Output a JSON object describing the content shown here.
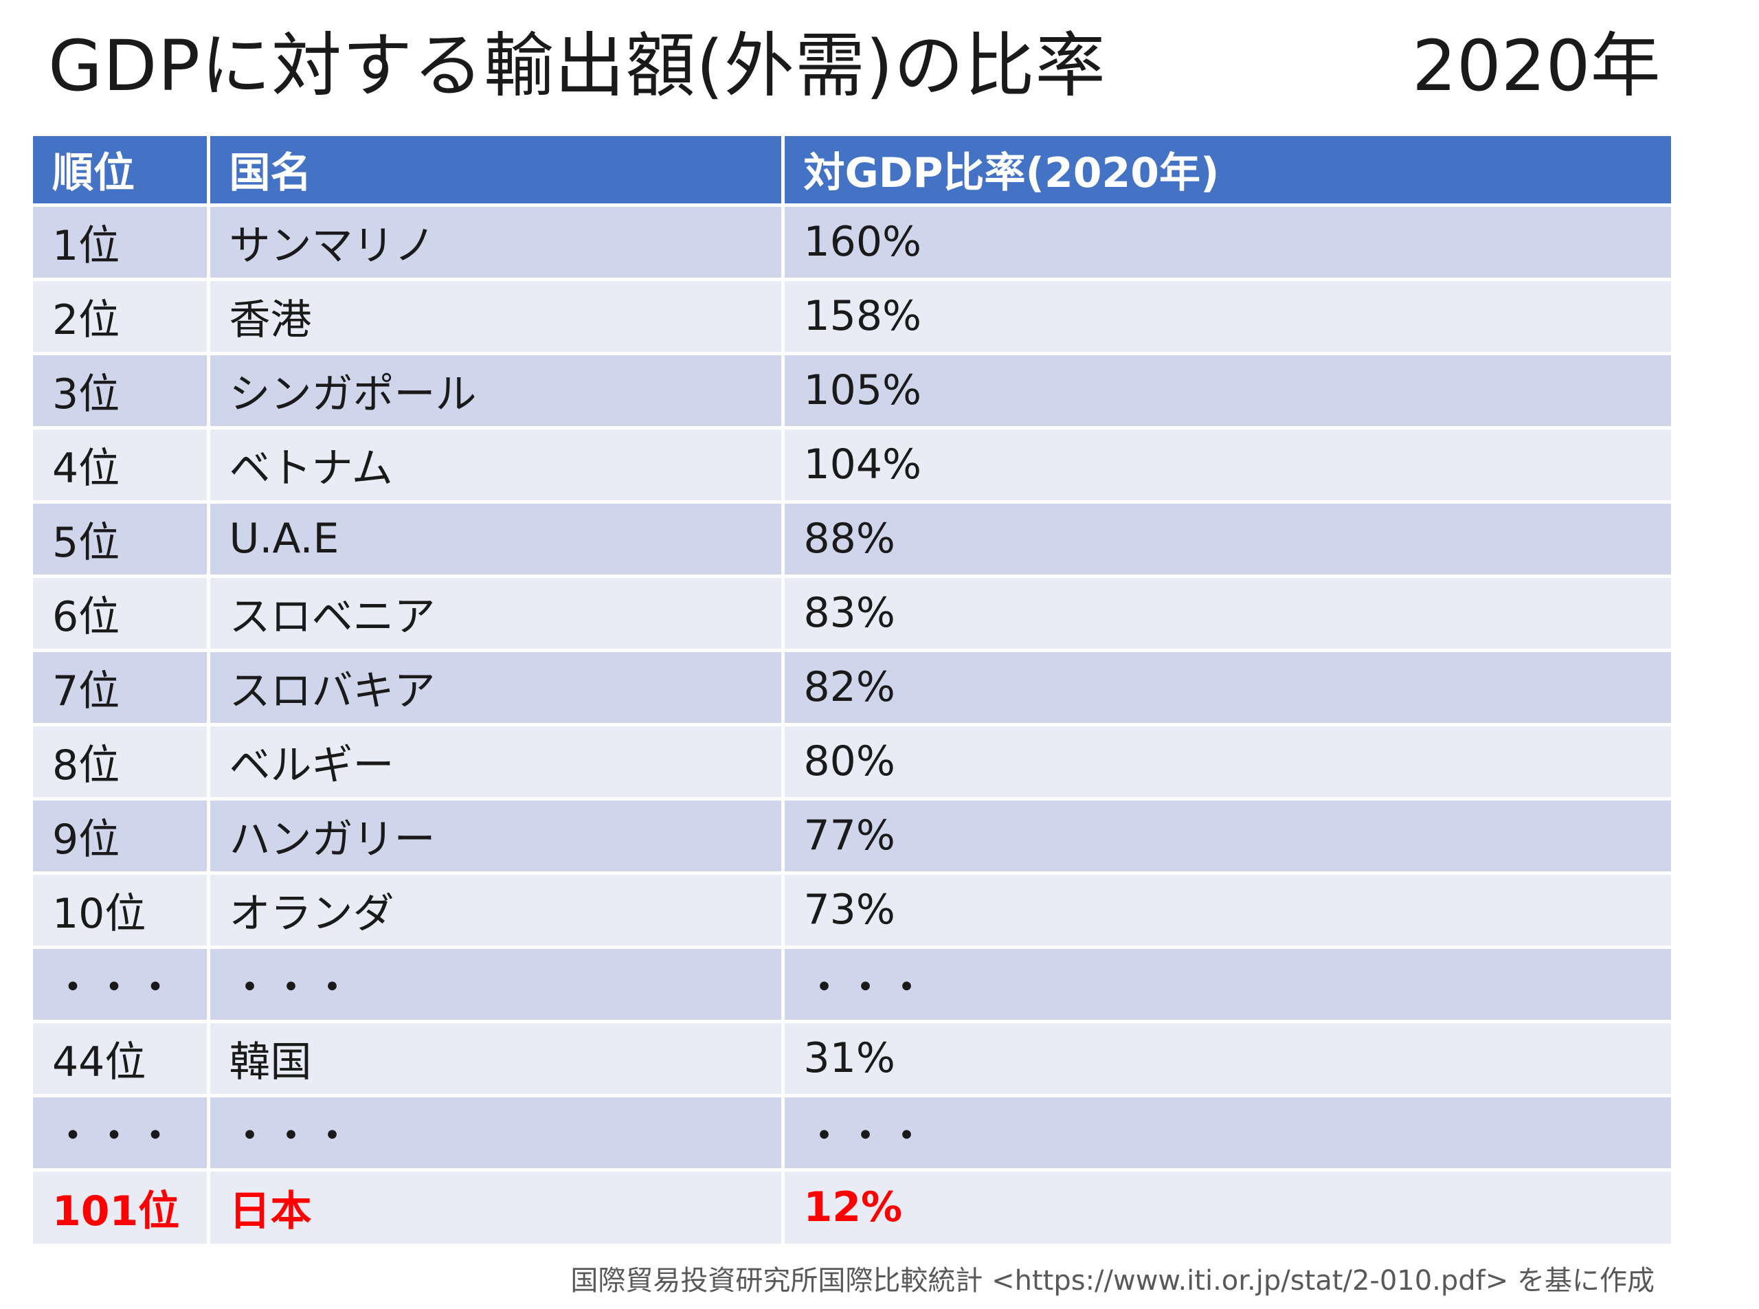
{
  "slide": {
    "title": "GDPに対する輸出額(外需)の比率",
    "year": "2020年"
  },
  "table": {
    "headers": [
      "順位",
      "国名",
      "対GDP比率(2020年)"
    ],
    "rows": [
      {
        "rank": "1位",
        "country": "サンマリノ",
        "ratio": "160%"
      },
      {
        "rank": "2位",
        "country": "香港",
        "ratio": "158%"
      },
      {
        "rank": "3位",
        "country": "シンガポール",
        "ratio": "105%"
      },
      {
        "rank": "4位",
        "country": "ベトナム",
        "ratio": "104%"
      },
      {
        "rank": "5位",
        "country": "U.A.E",
        "ratio": "88%"
      },
      {
        "rank": "6位",
        "country": "スロベニア",
        "ratio": "83%"
      },
      {
        "rank": "7位",
        "country": "スロバキア",
        "ratio": "82%"
      },
      {
        "rank": "8位",
        "country": "ベルギー",
        "ratio": "80%"
      },
      {
        "rank": "9位",
        "country": "ハンガリー",
        "ratio": "77%"
      },
      {
        "rank": "10位",
        "country": "オランダ",
        "ratio": "73%"
      },
      {
        "rank": "・・・",
        "country": "・・・",
        "ratio": "・・・"
      },
      {
        "rank": "44位",
        "country": "韓国",
        "ratio": "31%"
      },
      {
        "rank": "・・・",
        "country": "・・・",
        "ratio": "・・・"
      },
      {
        "rank": "101位",
        "country": "日本",
        "ratio": "12%",
        "highlight": true
      }
    ]
  },
  "source": "国際貿易投資研究所国際比較統計 <https://www.iti.or.jp/stat/2-010.pdf> を基に作成",
  "colors": {
    "header_bg": "#4472c4",
    "row_odd_bg": "#cfd5ea",
    "row_even_bg": "#e9ebf5",
    "highlight_text": "#ff0000"
  }
}
